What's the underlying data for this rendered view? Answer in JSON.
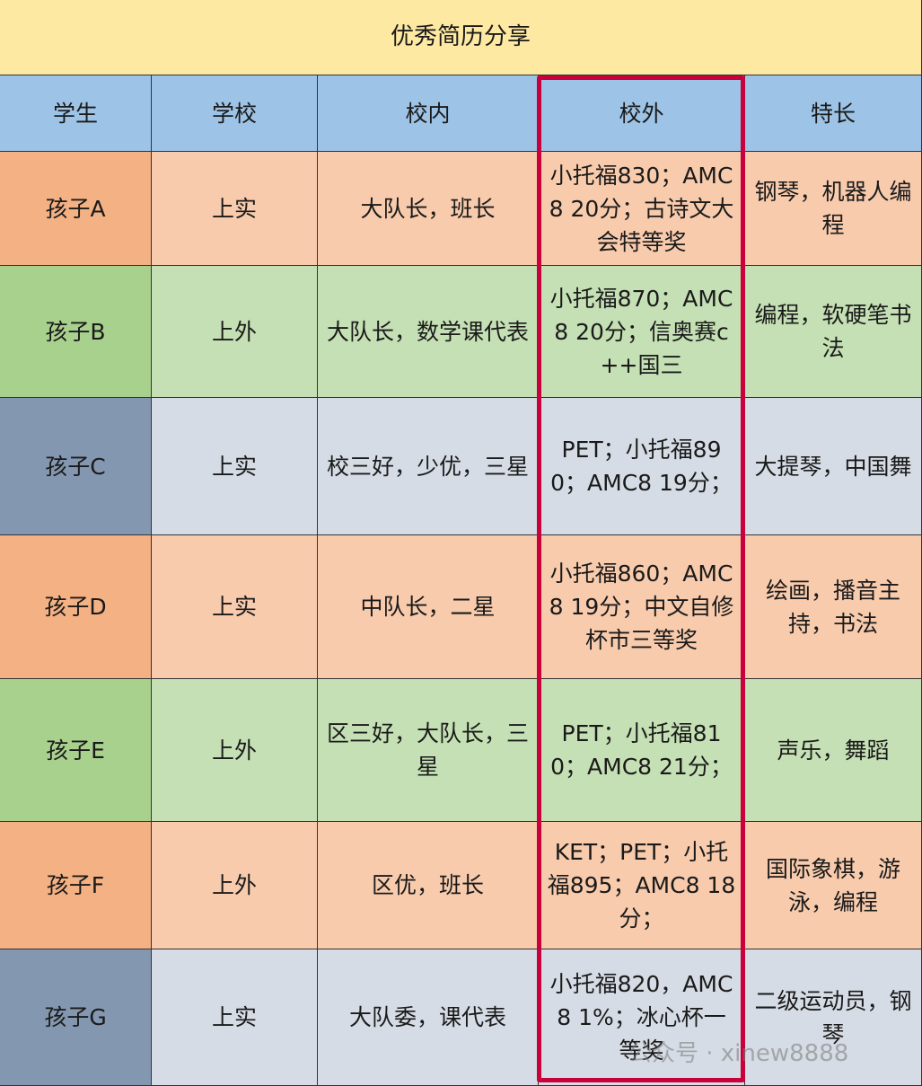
{
  "table": {
    "title": "优秀简历分享",
    "header": [
      "学生",
      "学校",
      "校内",
      "校外",
      "特长"
    ],
    "rows": [
      [
        "孩子A",
        "上实",
        "大队长，班长",
        "小托福830；AMC8 20分；古诗文大会特等奖",
        "钢琴，机器人编程"
      ],
      [
        "孩子B",
        "上外",
        "大队长，数学课代表",
        "小托福870；AMC8 20分；信奥赛c++国三",
        "编程，软硬笔书法"
      ],
      [
        "孩子C",
        "上实",
        "校三好，少优，三星",
        "PET；小托福890；AMC8 19分；",
        "大提琴，中国舞"
      ],
      [
        "孩子D",
        "上实",
        "中队长，二星",
        "小托福860；AMC8 19分；中文自修杯市三等奖",
        "绘画，播音主持，书法"
      ],
      [
        "孩子E",
        "上外",
        "区三好，大队长，三星",
        "PET；小托福810；AMC8 21分；",
        "声乐，舞蹈"
      ],
      [
        "孩子F",
        "上外",
        "区优，班长",
        "KET；PET；小托福895；AMC8 18分；",
        "国际象棋，游泳，编程"
      ],
      [
        "孩子G",
        "上实",
        "大队委，课代表",
        "小托福820，AMC8 1%；冰心杯一等奖",
        "二级运动员，钢琴"
      ]
    ]
  },
  "watermark": "公众号 · xinew8888"
}
